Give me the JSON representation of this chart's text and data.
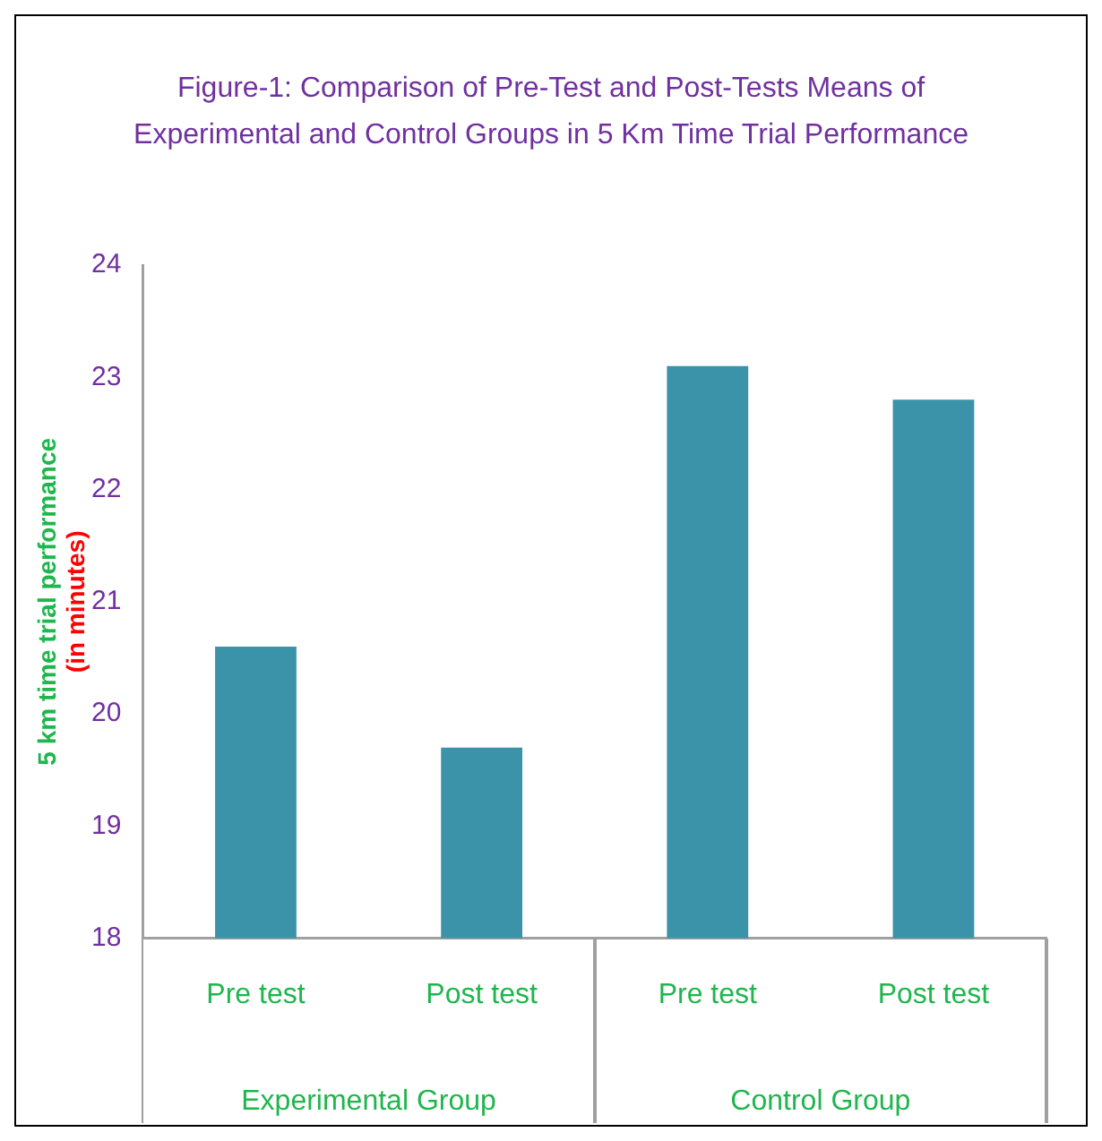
{
  "chart_data": {
    "type": "bar",
    "title": "Figure-1: Comparison of Pre-Test and Post-Tests Means of Experimental and Control Groups in 5 Km Time Trial Performance",
    "ylabel": "5 km time trial performance\n(in minutes)",
    "categories": [
      "Pre test",
      "Post test",
      "Pre test",
      "Post test"
    ],
    "values": [
      20.6,
      19.7,
      23.1,
      22.8
    ],
    "color": "#3a93a8",
    "ylim": [
      18,
      24
    ],
    "yticks": [
      18,
      19,
      20,
      21,
      22,
      23,
      24
    ],
    "grid": false,
    "annotations": [
      "Experimental Group",
      "Control Group"
    ]
  }
}
